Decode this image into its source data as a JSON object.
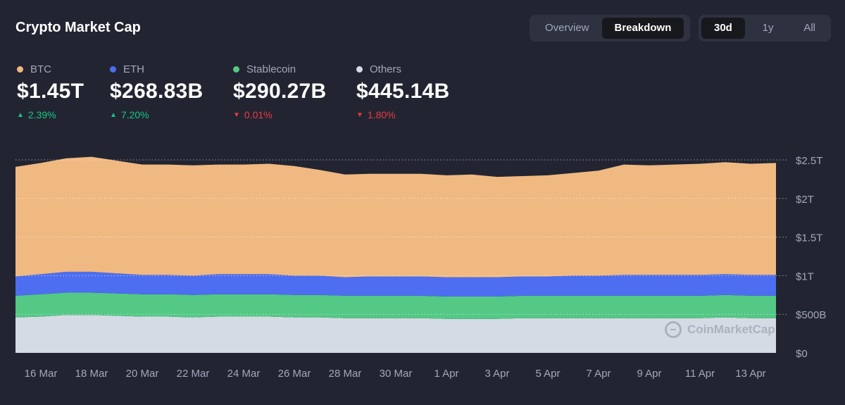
{
  "header": {
    "title": "Crypto Market Cap"
  },
  "view_toggle": [
    {
      "label": "Overview",
      "active": false
    },
    {
      "label": "Breakdown",
      "active": true
    }
  ],
  "range_toggle": [
    {
      "label": "30d",
      "active": true
    },
    {
      "label": "1y",
      "active": false
    },
    {
      "label": "All",
      "active": false
    }
  ],
  "stats": [
    {
      "name": "BTC",
      "value": "$1.45T",
      "change": "2.39%",
      "direction": "up",
      "color": "#f0b982"
    },
    {
      "name": "ETH",
      "value": "$268.83B",
      "change": "7.20%",
      "direction": "up",
      "color": "#4d6ef0"
    },
    {
      "name": "Stablecoin",
      "value": "$290.27B",
      "change": "0.01%",
      "direction": "down",
      "color": "#54c885"
    },
    {
      "name": "Others",
      "value": "$445.14B",
      "change": "1.80%",
      "direction": "down",
      "color": "#d5dbe5"
    }
  ],
  "watermark": "CoinMarketCap",
  "chart_data": {
    "type": "area",
    "stacked": true,
    "y_unit": "USD",
    "ylim": [
      0,
      2500000000000
    ],
    "yticks": [
      "$0",
      "$500B",
      "$1T",
      "$1.5T",
      "$2T",
      "$2.5T"
    ],
    "x": [
      "15 Mar",
      "16 Mar",
      "17 Mar",
      "18 Mar",
      "19 Mar",
      "20 Mar",
      "21 Mar",
      "22 Mar",
      "23 Mar",
      "24 Mar",
      "25 Mar",
      "26 Mar",
      "27 Mar",
      "28 Mar",
      "29 Mar",
      "30 Mar",
      "31 Mar",
      "1 Apr",
      "2 Apr",
      "3 Apr",
      "4 Apr",
      "5 Apr",
      "6 Apr",
      "7 Apr",
      "8 Apr",
      "9 Apr",
      "10 Apr",
      "11 Apr",
      "12 Apr",
      "13 Apr",
      "14 Apr"
    ],
    "xticks": [
      "16 Mar",
      "18 Mar",
      "20 Mar",
      "22 Mar",
      "24 Mar",
      "26 Mar",
      "28 Mar",
      "30 Mar",
      "1 Apr",
      "3 Apr",
      "5 Apr",
      "7 Apr",
      "9 Apr",
      "11 Apr",
      "13 Apr"
    ],
    "series": [
      {
        "name": "Others",
        "color": "#d5dbe5",
        "values": [
          0.46,
          0.47,
          0.49,
          0.49,
          0.48,
          0.47,
          0.47,
          0.46,
          0.47,
          0.47,
          0.47,
          0.46,
          0.46,
          0.45,
          0.45,
          0.45,
          0.45,
          0.44,
          0.44,
          0.44,
          0.45,
          0.45,
          0.45,
          0.45,
          0.45,
          0.45,
          0.45,
          0.45,
          0.46,
          0.45,
          0.45
        ]
      },
      {
        "name": "Stablecoin",
        "color": "#54c885",
        "values": [
          0.28,
          0.29,
          0.29,
          0.29,
          0.29,
          0.29,
          0.29,
          0.29,
          0.29,
          0.29,
          0.29,
          0.29,
          0.29,
          0.29,
          0.29,
          0.29,
          0.29,
          0.29,
          0.29,
          0.29,
          0.29,
          0.29,
          0.29,
          0.29,
          0.29,
          0.29,
          0.29,
          0.29,
          0.29,
          0.29,
          0.29
        ]
      },
      {
        "name": "ETH",
        "color": "#4d6ef0",
        "values": [
          0.25,
          0.26,
          0.27,
          0.27,
          0.26,
          0.25,
          0.25,
          0.25,
          0.26,
          0.26,
          0.26,
          0.25,
          0.25,
          0.24,
          0.25,
          0.25,
          0.25,
          0.25,
          0.25,
          0.25,
          0.25,
          0.25,
          0.26,
          0.26,
          0.27,
          0.27,
          0.27,
          0.27,
          0.27,
          0.27,
          0.27
        ]
      },
      {
        "name": "BTC",
        "color": "#f0b982",
        "values": [
          1.42,
          1.44,
          1.47,
          1.49,
          1.46,
          1.43,
          1.43,
          1.43,
          1.42,
          1.42,
          1.43,
          1.42,
          1.37,
          1.33,
          1.33,
          1.33,
          1.33,
          1.32,
          1.33,
          1.3,
          1.3,
          1.31,
          1.33,
          1.36,
          1.43,
          1.42,
          1.43,
          1.44,
          1.45,
          1.44,
          1.45
        ]
      }
    ]
  }
}
